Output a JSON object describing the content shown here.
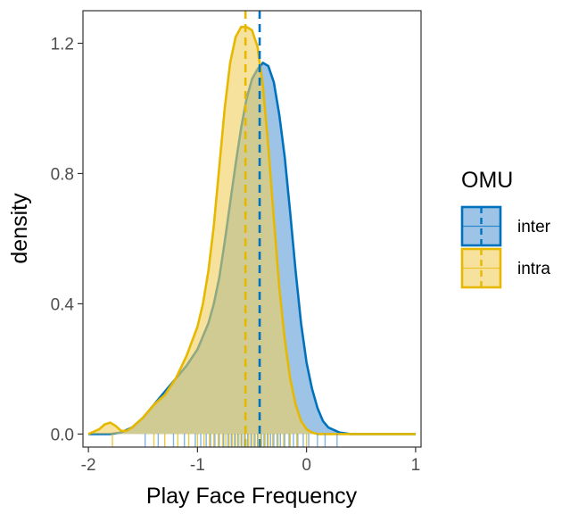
{
  "chart_data": {
    "type": "density",
    "xlabel": "Play Face Frequency",
    "ylabel": "density",
    "xlim": [
      -2.05,
      1.05
    ],
    "ylim": [
      -0.04,
      1.3
    ],
    "x_ticks": [
      -2,
      -1,
      0,
      1
    ],
    "x_tick_labels": [
      "-2",
      "-1",
      "0",
      "1"
    ],
    "y_ticks": [
      0.0,
      0.4,
      0.8,
      1.2
    ],
    "y_tick_labels": [
      "0.0",
      "0.4",
      "0.8",
      "1.2"
    ],
    "grid": false,
    "legend": {
      "title": "OMU",
      "position": "right",
      "entries": [
        "inter",
        "intra"
      ]
    },
    "series": [
      {
        "name": "inter",
        "line_color": "#0072BD",
        "fill_color": "#5B9BD5",
        "mean": -0.43,
        "x": [
          -2.0,
          -1.9,
          -1.8,
          -1.7,
          -1.6,
          -1.5,
          -1.4,
          -1.3,
          -1.2,
          -1.1,
          -1.0,
          -0.95,
          -0.9,
          -0.85,
          -0.8,
          -0.75,
          -0.7,
          -0.65,
          -0.6,
          -0.55,
          -0.5,
          -0.45,
          -0.4,
          -0.35,
          -0.3,
          -0.25,
          -0.2,
          -0.15,
          -0.1,
          -0.05,
          0.0,
          0.05,
          0.1,
          0.15,
          0.2,
          0.3,
          0.4,
          0.5,
          0.6,
          0.8,
          1.0
        ],
        "y": [
          0.0,
          0.0,
          0.0,
          0.005,
          0.02,
          0.05,
          0.09,
          0.13,
          0.17,
          0.21,
          0.26,
          0.3,
          0.34,
          0.4,
          0.48,
          0.59,
          0.71,
          0.83,
          0.94,
          1.03,
          1.09,
          1.12,
          1.14,
          1.13,
          1.08,
          0.98,
          0.85,
          0.68,
          0.5,
          0.34,
          0.22,
          0.14,
          0.08,
          0.04,
          0.02,
          0.005,
          0.0,
          0.0,
          0.0,
          0.0,
          0.0
        ]
      },
      {
        "name": "intra",
        "line_color": "#E6B800",
        "fill_color": "#F2CF5B",
        "mean": -0.56,
        "x": [
          -2.0,
          -1.9,
          -1.85,
          -1.8,
          -1.75,
          -1.7,
          -1.65,
          -1.6,
          -1.5,
          -1.4,
          -1.3,
          -1.2,
          -1.1,
          -1.0,
          -0.95,
          -0.9,
          -0.85,
          -0.8,
          -0.75,
          -0.7,
          -0.65,
          -0.6,
          -0.55,
          -0.5,
          -0.45,
          -0.4,
          -0.35,
          -0.3,
          -0.25,
          -0.2,
          -0.15,
          -0.1,
          -0.05,
          0.0,
          0.05,
          0.1,
          0.2,
          0.3,
          0.4,
          0.5,
          0.6,
          0.8,
          1.0
        ],
        "y": [
          0.0,
          0.015,
          0.03,
          0.035,
          0.025,
          0.01,
          0.01,
          0.02,
          0.05,
          0.09,
          0.12,
          0.17,
          0.24,
          0.33,
          0.4,
          0.5,
          0.64,
          0.82,
          1.0,
          1.14,
          1.22,
          1.25,
          1.25,
          1.24,
          1.19,
          1.07,
          0.88,
          0.66,
          0.45,
          0.29,
          0.17,
          0.09,
          0.04,
          0.015,
          0.005,
          0.0,
          0.0,
          0.0,
          0.0,
          0.0,
          0.0,
          0.0,
          0.0
        ]
      }
    ],
    "rug": {
      "inter": [
        -1.48,
        -1.36,
        -1.22,
        -1.12,
        -1.02,
        -0.97,
        -0.92,
        -0.88,
        -0.84,
        -0.8,
        -0.76,
        -0.72,
        -0.69,
        -0.66,
        -0.63,
        -0.6,
        -0.57,
        -0.54,
        -0.51,
        -0.48,
        -0.45,
        -0.42,
        -0.39,
        -0.36,
        -0.33,
        -0.3,
        -0.27,
        -0.24,
        -0.2,
        -0.16,
        -0.12,
        -0.08,
        -0.03,
        0.02,
        0.1,
        0.17,
        0.28
      ],
      "intra": [
        -1.78,
        -1.4,
        -1.3,
        -1.18,
        -1.08,
        -1.0,
        -0.94,
        -0.89,
        -0.85,
        -0.81,
        -0.77,
        -0.74,
        -0.71,
        -0.68,
        -0.65,
        -0.62,
        -0.59,
        -0.56,
        -0.53,
        -0.5,
        -0.47,
        -0.44,
        -0.41,
        -0.38,
        -0.35,
        -0.31,
        -0.26,
        -0.21,
        -0.15,
        -0.09,
        0.0
      ]
    }
  }
}
